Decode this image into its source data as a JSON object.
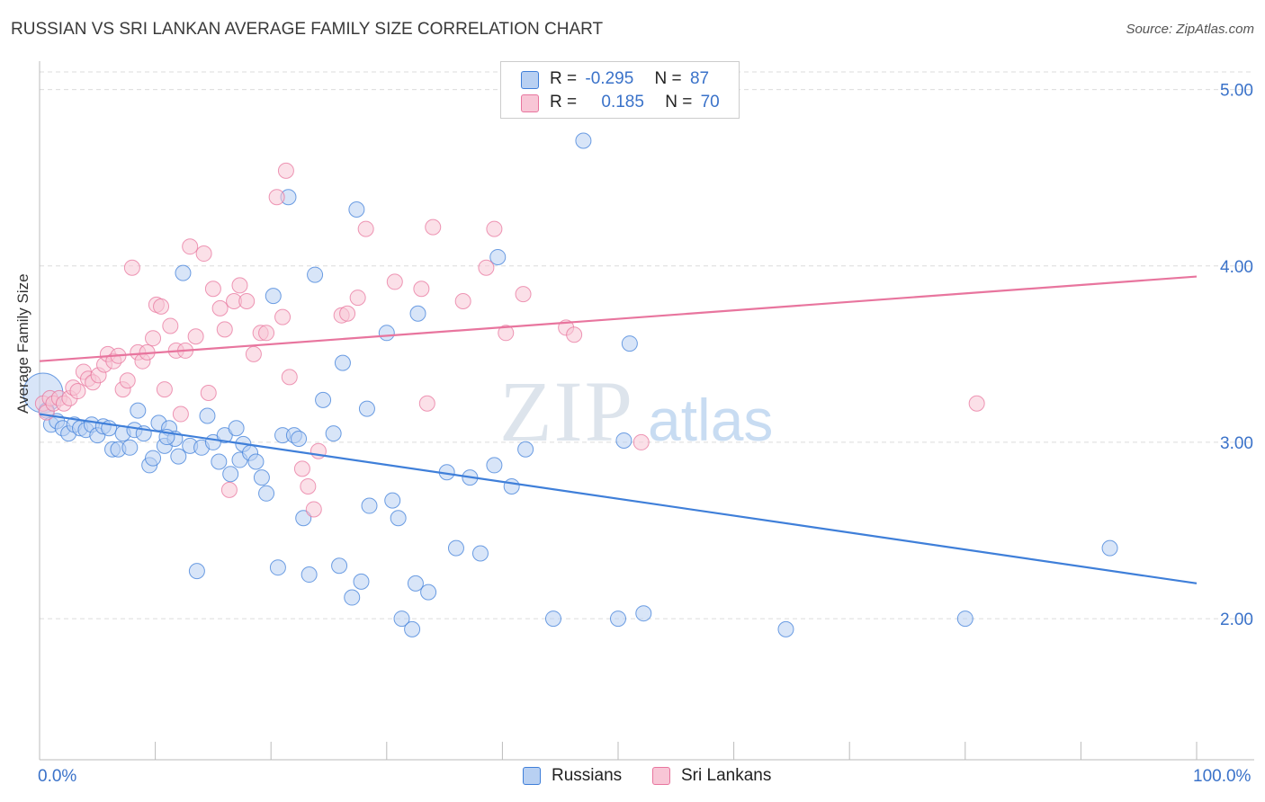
{
  "header": {
    "title": "RUSSIAN VS SRI LANKAN AVERAGE FAMILY SIZE CORRELATION CHART",
    "source": "Source: ZipAtlas.com"
  },
  "watermark": {
    "zip": "ZIP",
    "atlas": "atlas"
  },
  "colors": {
    "blue": "#3f7fd9",
    "pink": "#e8759e",
    "blue_fill": "#b8d0f2",
    "pink_fill": "#f8c6d6",
    "axis_text": "#3a72c9"
  },
  "legend": {
    "rows": [
      {
        "r_label": "R =",
        "r_value": "-0.295",
        "n_label": "N =",
        "n_value": "87"
      },
      {
        "r_label": "R =",
        "r_value": "0.185",
        "n_label": "N =",
        "n_value": "70"
      }
    ]
  },
  "bottom_legend": {
    "series1": "Russians",
    "series2": "Sri Lankans"
  },
  "chart_data": {
    "type": "scatter",
    "title": "RUSSIAN VS SRI LANKAN AVERAGE FAMILY SIZE CORRELATION CHART",
    "xlabel": "",
    "ylabel": "Average Family Size",
    "xlim": [
      0,
      100
    ],
    "ylim": [
      1.2,
      5.1
    ],
    "x_tick_labels": [
      "0.0%",
      "100.0%"
    ],
    "y_ticks": [
      2,
      3,
      4,
      5
    ],
    "y_tick_labels": [
      "2.00",
      "3.00",
      "4.00",
      "5.00"
    ],
    "grid": true,
    "series": [
      {
        "name": "Russians",
        "color": "#3f7fd9",
        "trend": {
          "x": [
            0,
            100
          ],
          "y": [
            3.16,
            2.2
          ]
        },
        "points": [
          [
            0.3,
            3.28
          ],
          [
            0.6,
            3.18
          ],
          [
            1.0,
            3.1
          ],
          [
            1.5,
            3.12
          ],
          [
            2.0,
            3.08
          ],
          [
            2.5,
            3.05
          ],
          [
            3.0,
            3.1
          ],
          [
            3.5,
            3.08
          ],
          [
            4.0,
            3.07
          ],
          [
            4.5,
            3.1
          ],
          [
            5.0,
            3.04
          ],
          [
            5.5,
            3.09
          ],
          [
            6.0,
            3.08
          ],
          [
            6.3,
            2.96
          ],
          [
            6.8,
            2.96
          ],
          [
            7.2,
            3.05
          ],
          [
            7.8,
            2.97
          ],
          [
            8.2,
            3.07
          ],
          [
            8.5,
            3.18
          ],
          [
            9.0,
            3.05
          ],
          [
            9.5,
            2.87
          ],
          [
            9.8,
            2.91
          ],
          [
            10.3,
            3.11
          ],
          [
            10.8,
            2.98
          ],
          [
            11.2,
            3.08
          ],
          [
            11.7,
            3.02
          ],
          [
            12.0,
            2.92
          ],
          [
            12.4,
            3.96
          ],
          [
            13.0,
            2.98
          ],
          [
            13.6,
            2.27
          ],
          [
            14.0,
            2.97
          ],
          [
            14.5,
            3.15
          ],
          [
            15.0,
            3.0
          ],
          [
            15.5,
            2.89
          ],
          [
            16.0,
            3.04
          ],
          [
            16.5,
            2.82
          ],
          [
            17.0,
            3.08
          ],
          [
            17.3,
            2.9
          ],
          [
            17.6,
            2.99
          ],
          [
            18.2,
            2.94
          ],
          [
            18.7,
            2.89
          ],
          [
            19.2,
            2.8
          ],
          [
            19.6,
            2.71
          ],
          [
            20.2,
            3.83
          ],
          [
            20.6,
            2.29
          ],
          [
            21.0,
            3.04
          ],
          [
            21.5,
            4.39
          ],
          [
            22.0,
            3.04
          ],
          [
            22.4,
            3.02
          ],
          [
            22.8,
            2.57
          ],
          [
            23.3,
            2.25
          ],
          [
            23.8,
            3.95
          ],
          [
            24.5,
            3.24
          ],
          [
            25.4,
            3.05
          ],
          [
            25.9,
            2.3
          ],
          [
            26.2,
            3.45
          ],
          [
            27.0,
            2.12
          ],
          [
            27.4,
            4.32
          ],
          [
            27.8,
            2.21
          ],
          [
            28.3,
            3.19
          ],
          [
            28.5,
            2.64
          ],
          [
            30.5,
            2.67
          ],
          [
            31.0,
            2.57
          ],
          [
            30.0,
            3.62
          ],
          [
            31.3,
            2.0
          ],
          [
            32.2,
            1.94
          ],
          [
            32.5,
            2.2
          ],
          [
            32.7,
            3.73
          ],
          [
            33.6,
            2.15
          ],
          [
            35.2,
            2.83
          ],
          [
            36.0,
            2.4
          ],
          [
            37.2,
            2.8
          ],
          [
            38.1,
            2.37
          ],
          [
            39.3,
            2.87
          ],
          [
            39.6,
            4.05
          ],
          [
            40.8,
            2.75
          ],
          [
            42.0,
            2.96
          ],
          [
            44.4,
            2.0
          ],
          [
            47.0,
            4.71
          ],
          [
            50.0,
            2.0
          ],
          [
            50.5,
            3.01
          ],
          [
            51.0,
            3.56
          ],
          [
            52.2,
            2.03
          ],
          [
            64.5,
            1.94
          ],
          [
            80.0,
            2.0
          ],
          [
            92.5,
            2.4
          ],
          [
            11.0,
            3.03
          ]
        ]
      },
      {
        "name": "Sri Lankans",
        "color": "#e8759e",
        "trend": {
          "x": [
            0,
            100
          ],
          "y": [
            3.46,
            3.94
          ]
        },
        "points": [
          [
            0.3,
            3.22
          ],
          [
            0.6,
            3.17
          ],
          [
            0.9,
            3.25
          ],
          [
            1.2,
            3.22
          ],
          [
            1.7,
            3.25
          ],
          [
            2.1,
            3.22
          ],
          [
            2.6,
            3.25
          ],
          [
            2.9,
            3.31
          ],
          [
            3.3,
            3.29
          ],
          [
            3.8,
            3.4
          ],
          [
            4.2,
            3.36
          ],
          [
            4.6,
            3.34
          ],
          [
            5.1,
            3.38
          ],
          [
            5.6,
            3.44
          ],
          [
            5.9,
            3.5
          ],
          [
            6.4,
            3.46
          ],
          [
            6.8,
            3.49
          ],
          [
            7.2,
            3.3
          ],
          [
            7.6,
            3.35
          ],
          [
            8.0,
            3.99
          ],
          [
            8.5,
            3.51
          ],
          [
            8.9,
            3.46
          ],
          [
            9.3,
            3.51
          ],
          [
            9.8,
            3.59
          ],
          [
            10.1,
            3.78
          ],
          [
            10.5,
            3.77
          ],
          [
            10.8,
            3.3
          ],
          [
            11.3,
            3.66
          ],
          [
            11.8,
            3.52
          ],
          [
            12.2,
            3.16
          ],
          [
            12.6,
            3.52
          ],
          [
            13.0,
            4.11
          ],
          [
            13.5,
            3.6
          ],
          [
            14.2,
            4.07
          ],
          [
            14.6,
            3.28
          ],
          [
            15.0,
            3.87
          ],
          [
            15.6,
            3.76
          ],
          [
            16.0,
            3.64
          ],
          [
            16.4,
            2.73
          ],
          [
            16.8,
            3.8
          ],
          [
            17.3,
            3.89
          ],
          [
            17.9,
            3.8
          ],
          [
            18.5,
            3.5
          ],
          [
            19.1,
            3.62
          ],
          [
            19.6,
            3.62
          ],
          [
            20.5,
            4.39
          ],
          [
            21.0,
            3.71
          ],
          [
            21.3,
            4.54
          ],
          [
            21.6,
            3.37
          ],
          [
            22.7,
            2.85
          ],
          [
            23.2,
            2.75
          ],
          [
            23.7,
            2.62
          ],
          [
            24.1,
            2.95
          ],
          [
            26.1,
            3.72
          ],
          [
            26.6,
            3.73
          ],
          [
            27.5,
            3.82
          ],
          [
            28.2,
            4.21
          ],
          [
            30.7,
            3.91
          ],
          [
            33.0,
            3.87
          ],
          [
            33.5,
            3.22
          ],
          [
            34.0,
            4.22
          ],
          [
            36.6,
            3.8
          ],
          [
            38.6,
            3.99
          ],
          [
            39.3,
            4.21
          ],
          [
            40.3,
            3.62
          ],
          [
            41.8,
            3.84
          ],
          [
            45.5,
            3.65
          ],
          [
            46.2,
            3.61
          ],
          [
            52.0,
            3.0
          ],
          [
            81.0,
            3.22
          ]
        ]
      }
    ]
  }
}
